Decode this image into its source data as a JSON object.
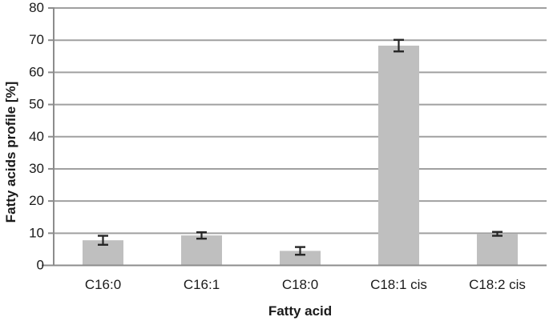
{
  "chart_data": {
    "type": "bar",
    "title": "",
    "xlabel": "Fatty acid",
    "ylabel": "Fatty acids profile [%]",
    "categories": [
      "C16:0",
      "C16:1",
      "C18:0",
      "C18:1 cis",
      "C18:2 cis"
    ],
    "values": [
      7.8,
      9.3,
      4.5,
      68.3,
      9.8
    ],
    "error_bars": [
      1.4,
      1.0,
      1.2,
      1.8,
      0.6
    ],
    "ylim": [
      0,
      80
    ],
    "ytick_step": 10,
    "ytick_labels": [
      "0",
      "10",
      "20",
      "30",
      "40",
      "50",
      "60",
      "70",
      "80"
    ],
    "grid": true,
    "legend": "none",
    "colors": {
      "bar_fill": "#bfbfbf",
      "gridline": "#a0a0a0",
      "axis_line": "#8c8c8c",
      "error_bar": "#262626",
      "text": "#1a1a1a",
      "background": "#ffffff"
    }
  }
}
